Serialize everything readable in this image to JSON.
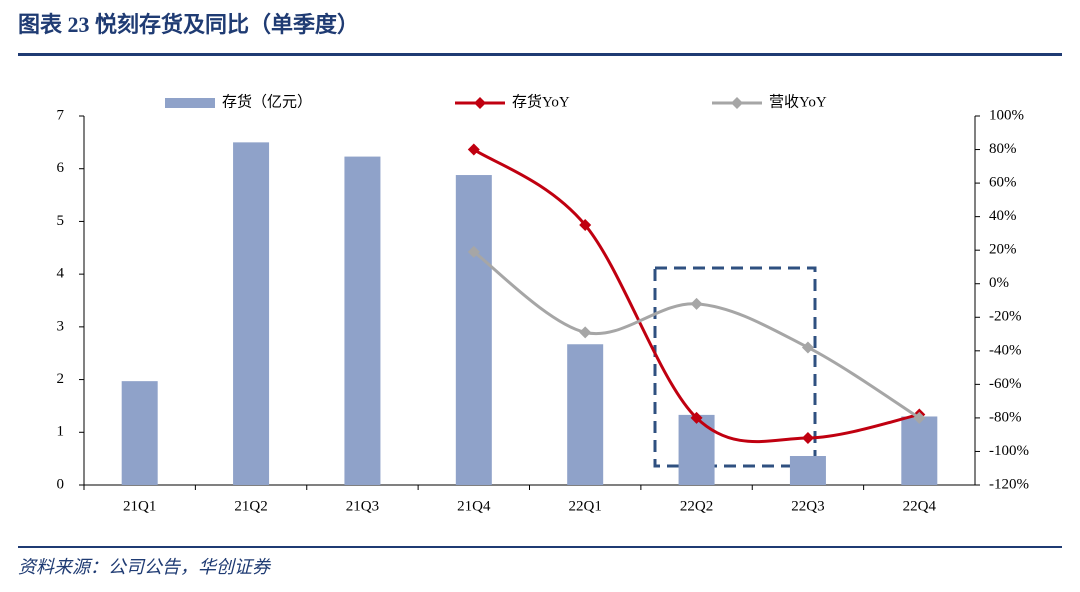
{
  "chart_data": {
    "type": "bar-line",
    "title": "图表 23   悦刻存货及同比（单季度）",
    "source": "资料来源：公司公告，华创证券",
    "categories": [
      "21Q1",
      "21Q2",
      "21Q3",
      "21Q4",
      "22Q1",
      "22Q2",
      "22Q3",
      "22Q4"
    ],
    "series": [
      {
        "name": "存货（亿元）",
        "type": "bar",
        "color": "#8fa2c9",
        "values": [
          1.97,
          6.5,
          6.23,
          5.88,
          2.67,
          1.33,
          0.55,
          1.3
        ]
      },
      {
        "name": "存货YoY",
        "type": "line",
        "axis": "y2",
        "color": "#c00010",
        "values": [
          null,
          null,
          null,
          80,
          35,
          -80,
          -92,
          -78
        ]
      },
      {
        "name": "营收YoY",
        "type": "line",
        "axis": "y2",
        "color": "#a6a6a6",
        "values": [
          null,
          null,
          null,
          19,
          -29,
          -12,
          -38,
          -80
        ]
      }
    ],
    "ylim": [
      0,
      7
    ],
    "yticks": [
      0,
      1,
      2,
      3,
      4,
      5,
      6,
      7
    ],
    "y2lim": [
      -120,
      100
    ],
    "y2ticks": [
      {
        "value": -120,
        "label": "-120%"
      },
      {
        "value": -100,
        "label": "-100%"
      },
      {
        "value": -80,
        "label": "-80%"
      },
      {
        "value": -60,
        "label": "-60%"
      },
      {
        "value": -40,
        "label": "-40%"
      },
      {
        "value": -20,
        "label": "-20%"
      },
      {
        "value": 0,
        "label": "0%"
      },
      {
        "value": 20,
        "label": "20%"
      },
      {
        "value": 40,
        "label": "40%"
      },
      {
        "value": 60,
        "label": "60%"
      },
      {
        "value": 80,
        "label": "80%"
      },
      {
        "value": 100,
        "label": "100%"
      }
    ],
    "grid": false
  }
}
